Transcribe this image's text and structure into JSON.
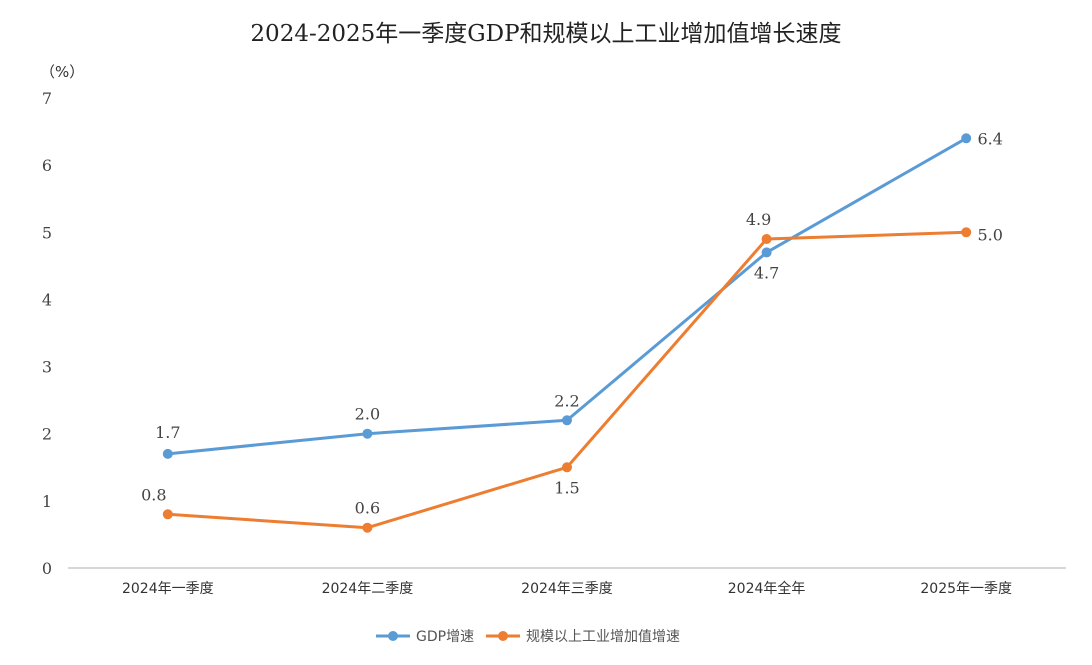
{
  "chart_data": {
    "type": "line",
    "title": "2024-2025年一季度GDP和规模以上工业增加值增长速度",
    "ylabel": "（%）",
    "ylim": [
      0,
      7
    ],
    "yticks": [
      "0",
      "1",
      "2",
      "3",
      "4",
      "5",
      "6",
      "7"
    ],
    "categories": [
      "2024年一季度",
      "2024年二季度",
      "2024年三季度",
      "2024年全年",
      "2025年一季度"
    ],
    "series": [
      {
        "name": "GDP增速",
        "color": "#5b9bd5",
        "values": [
          1.7,
          2.0,
          2.2,
          4.7,
          6.4
        ],
        "labels": [
          "1.7",
          "2.0",
          "2.2",
          "4.7",
          "6.4"
        ]
      },
      {
        "name": "规模以上工业增加值增速",
        "color": "#ed7d31",
        "values": [
          0.8,
          0.6,
          1.5,
          4.9,
          5.0
        ],
        "labels": [
          "0.8",
          "0.6",
          "1.5",
          "4.9",
          "5.0"
        ]
      }
    ],
    "grid": false,
    "legend": "bottom"
  }
}
